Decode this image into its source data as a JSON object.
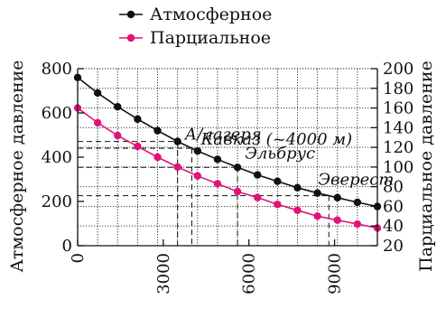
{
  "chart_data": {
    "type": "line",
    "x_axis": {
      "range": [
        0,
        10500
      ],
      "ticks": [
        0,
        3000,
        6000,
        9000
      ],
      "tick_labels": [
        "0",
        "3000",
        "6000",
        "9000"
      ]
    },
    "y_left": {
      "label": "Атмосферное давление",
      "range": [
        0,
        800
      ],
      "ticks": [
        0,
        200,
        400,
        600,
        800
      ],
      "tick_labels": [
        "0",
        "200",
        "400",
        "600",
        "800"
      ]
    },
    "y_right": {
      "label": "Парциальное давление",
      "range": [
        20,
        200
      ],
      "ticks": [
        20,
        40,
        60,
        80,
        100,
        120,
        140,
        160,
        180,
        200
      ],
      "tick_labels": [
        "20",
        "40",
        "60",
        "80",
        "100",
        "120",
        "140",
        "160",
        "180",
        "200"
      ]
    },
    "grid": true,
    "legend": {
      "position": "top-left"
    },
    "series": [
      {
        "name": "Атмосферное",
        "axis": "left",
        "color": "#111111",
        "x": [
          0,
          700,
          1400,
          2100,
          2800,
          3500,
          4200,
          4900,
          5600,
          6300,
          7000,
          7700,
          8400,
          9100,
          9800,
          10500
        ],
        "y": [
          760,
          690,
          628,
          572,
          520,
          471,
          428,
          390,
          354,
          320,
          291,
          262,
          238,
          217,
          196,
          177
        ]
      },
      {
        "name": "Парциальное",
        "axis": "right",
        "color": "#e0137a",
        "x": [
          0,
          700,
          1400,
          2100,
          2800,
          3500,
          4200,
          4900,
          5600,
          6300,
          7000,
          7700,
          8400,
          9100,
          9800,
          10500
        ],
        "y": [
          160,
          145,
          132,
          121,
          110,
          100,
          91,
          83,
          75,
          69,
          62,
          56,
          50,
          46,
          42,
          38
        ]
      }
    ],
    "annotations": [
      {
        "label": "А/лагеря",
        "x": 3500,
        "y": 570
      },
      {
        "label": "Кавказ (~4000 м)",
        "x": 4000,
        "y": 480
      },
      {
        "label": "Эльбрус",
        "x": 5600,
        "y": 400
      },
      {
        "label": "Эверест",
        "x": 8800,
        "y": 296
      }
    ]
  }
}
